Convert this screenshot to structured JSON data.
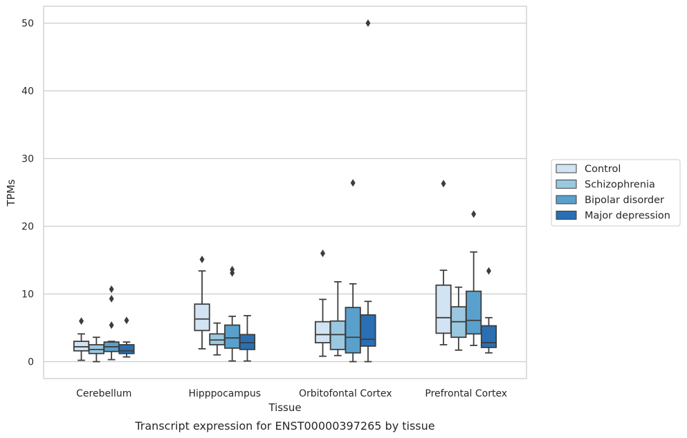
{
  "chart_data": {
    "type": "box",
    "xlabel": "Tissue",
    "ylabel": "TPMs",
    "caption": "Transcript expression for ENST00000397265 by tissue",
    "ylim": [
      -2.5,
      52.5
    ],
    "yticks": [
      0,
      10,
      20,
      30,
      40,
      50
    ],
    "grid": true,
    "legend_position": "right",
    "categories": [
      "Cerebellum",
      "Hipppocampus",
      "Orbitofontal Cortex",
      "Prefrontal Cortex"
    ],
    "series": [
      {
        "name": "Control",
        "color": "#d2e3f3",
        "boxes": [
          {
            "whislo": 0.2,
            "q1": 1.6,
            "med": 2.2,
            "q3": 3.0,
            "whishi": 4.1,
            "fliers": [
              6.0
            ]
          },
          {
            "whislo": 1.9,
            "q1": 4.6,
            "med": 6.3,
            "q3": 8.5,
            "whishi": 13.4,
            "fliers": [
              15.1
            ]
          },
          {
            "whislo": 0.8,
            "q1": 2.8,
            "med": 4.0,
            "q3": 5.9,
            "whishi": 9.2,
            "fliers": [
              16.0
            ]
          },
          {
            "whislo": 2.5,
            "q1": 4.2,
            "med": 6.5,
            "q3": 11.3,
            "whishi": 13.5,
            "fliers": [
              26.3
            ]
          }
        ]
      },
      {
        "name": "Schizophrenia",
        "color": "#9ac8e0",
        "boxes": [
          {
            "whislo": 0.0,
            "q1": 1.2,
            "med": 1.8,
            "q3": 2.5,
            "whishi": 3.6,
            "fliers": []
          },
          {
            "whislo": 1.0,
            "q1": 2.5,
            "med": 3.2,
            "q3": 4.1,
            "whishi": 5.7,
            "fliers": []
          },
          {
            "whislo": 0.9,
            "q1": 1.8,
            "med": 4.0,
            "q3": 6.0,
            "whishi": 11.8,
            "fliers": []
          },
          {
            "whislo": 1.7,
            "q1": 3.6,
            "med": 5.9,
            "q3": 8.1,
            "whishi": 11.0,
            "fliers": []
          }
        ]
      },
      {
        "name": "Bipolar disorder",
        "color": "#5aa0cd",
        "boxes": [
          {
            "whislo": 0.3,
            "q1": 1.5,
            "med": 2.2,
            "q3": 2.9,
            "whishi": 3.0,
            "fliers": [
              5.4,
              9.3,
              10.7
            ]
          },
          {
            "whislo": 0.1,
            "q1": 2.0,
            "med": 3.5,
            "q3": 5.4,
            "whishi": 6.7,
            "fliers": [
              13.1,
              13.6
            ]
          },
          {
            "whislo": 0.0,
            "q1": 1.3,
            "med": 3.6,
            "q3": 8.0,
            "whishi": 11.5,
            "fliers": [
              26.4
            ]
          },
          {
            "whislo": 2.4,
            "q1": 4.1,
            "med": 6.1,
            "q3": 10.4,
            "whishi": 16.2,
            "fliers": [
              21.8
            ]
          }
        ]
      },
      {
        "name": "Major depression",
        "color": "#2a6fb4",
        "boxes": [
          {
            "whislo": 0.7,
            "q1": 1.2,
            "med": 1.6,
            "q3": 2.5,
            "whishi": 2.9,
            "fliers": [
              6.1
            ]
          },
          {
            "whislo": 0.1,
            "q1": 1.8,
            "med": 2.8,
            "q3": 4.0,
            "whishi": 6.8,
            "fliers": []
          },
          {
            "whislo": 0.0,
            "q1": 2.3,
            "med": 3.3,
            "q3": 6.9,
            "whishi": 8.9,
            "fliers": [
              50.0
            ]
          },
          {
            "whislo": 1.3,
            "q1": 2.1,
            "med": 2.8,
            "q3": 5.3,
            "whishi": 6.5,
            "fliers": [
              13.4
            ]
          }
        ]
      }
    ]
  }
}
